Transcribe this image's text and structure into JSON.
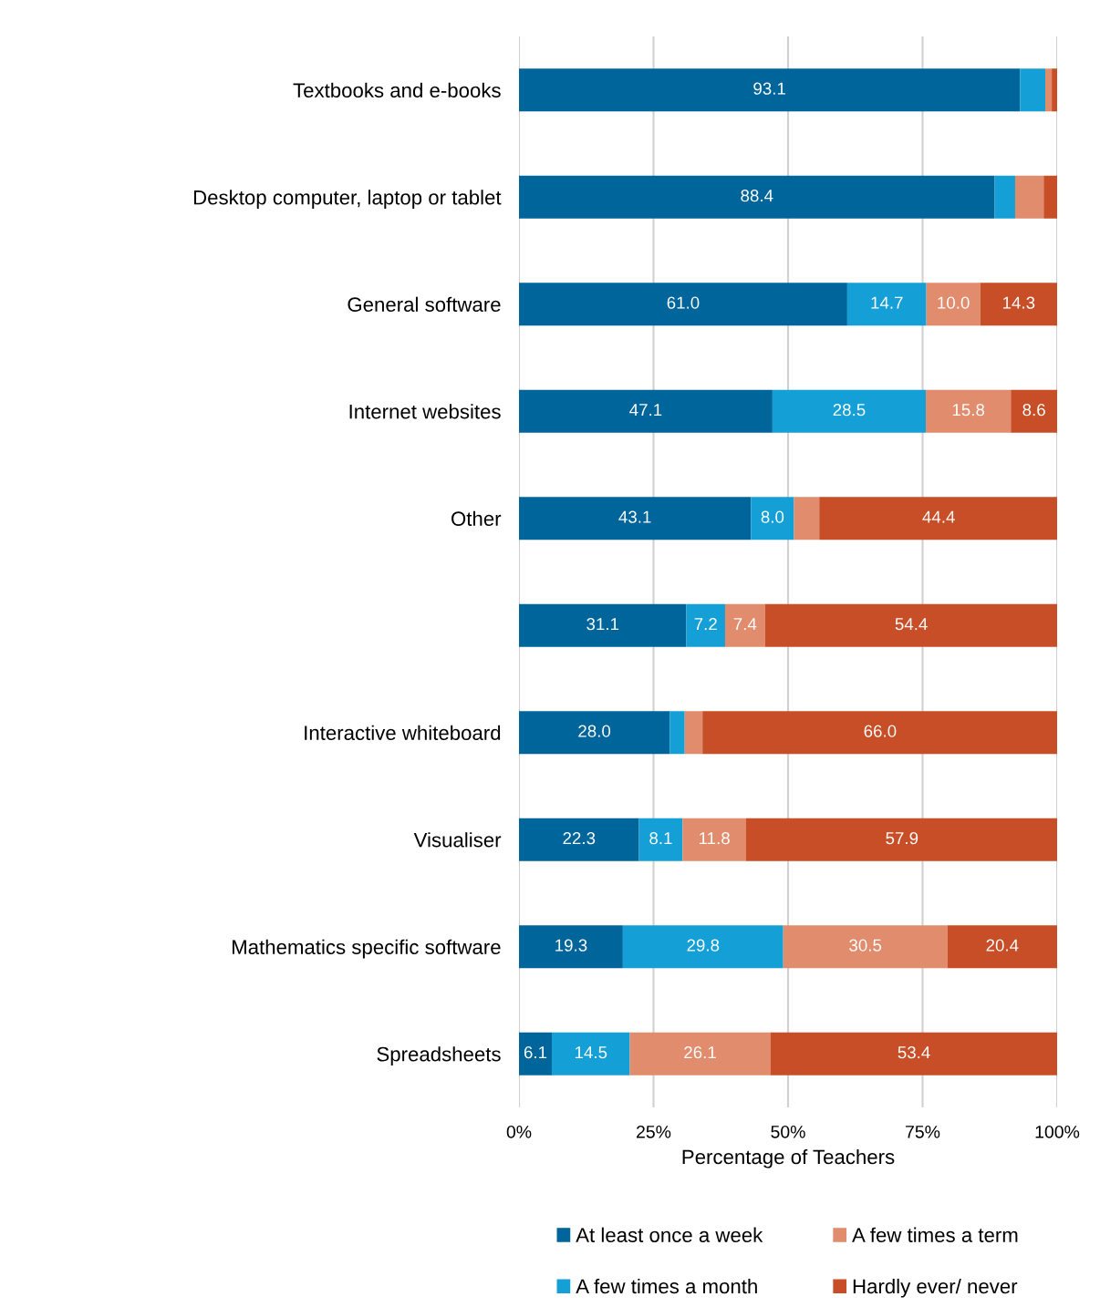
{
  "chart_data": {
    "type": "bar",
    "orientation": "horizontal",
    "stacked": true,
    "xlabel": "Percentage of Teachers",
    "categories": [
      "Textbooks and e-books",
      "Desktop computer, laptop or tablet",
      "General software",
      "Internet websites",
      "Other",
      null,
      "Interactive whiteboard",
      "Visualiser",
      "Mathematics specific software",
      "Spreadsheets"
    ],
    "series": [
      {
        "name": "At least once a week",
        "color": "#00659a",
        "values": [
          93.1,
          88.4,
          61.0,
          47.1,
          43.1,
          31.1,
          28.0,
          22.3,
          19.3,
          6.1
        ],
        "value_labels": [
          "93.1",
          "88.4",
          "61.0",
          "47.1",
          "43.1",
          "31.1",
          "28.0",
          "22.3",
          "19.3",
          "6.1"
        ]
      },
      {
        "name": "A few times a month",
        "color": "#14a0d6",
        "values": [
          4.7,
          3.8,
          14.7,
          28.5,
          8.0,
          7.2,
          2.8,
          8.1,
          29.8,
          14.5
        ],
        "value_labels": [
          null,
          null,
          "14.7",
          "28.5",
          "8.0",
          "7.2",
          null,
          "8.1",
          "29.8",
          "14.5"
        ]
      },
      {
        "name": "A few times a term",
        "color": "#e08c6d",
        "values": [
          1.2,
          5.3,
          10.0,
          15.8,
          4.7,
          7.4,
          3.3,
          11.8,
          30.5,
          26.1
        ],
        "value_labels": [
          null,
          null,
          "10.0",
          "15.8",
          null,
          "7.4",
          null,
          "11.8",
          "30.5",
          "26.1"
        ]
      },
      {
        "name": "Hardly ever/ never",
        "color": "#c84e28",
        "values": [
          1.0,
          2.5,
          14.3,
          8.6,
          44.4,
          54.4,
          66.0,
          57.9,
          20.4,
          53.4
        ],
        "value_labels": [
          null,
          null,
          "14.3",
          "8.6",
          "44.4",
          "54.4",
          "66.0",
          "57.9",
          "20.4",
          "53.4"
        ]
      }
    ],
    "xlim": [
      0,
      100
    ],
    "xticks": [
      {
        "value": 0,
        "label": "0%"
      },
      {
        "value": 25,
        "label": "25%"
      },
      {
        "value": 50,
        "label": "50%"
      },
      {
        "value": 75,
        "label": "75%"
      },
      {
        "value": 100,
        "label": "100%"
      }
    ],
    "grid": "x",
    "legend": "bottom"
  }
}
